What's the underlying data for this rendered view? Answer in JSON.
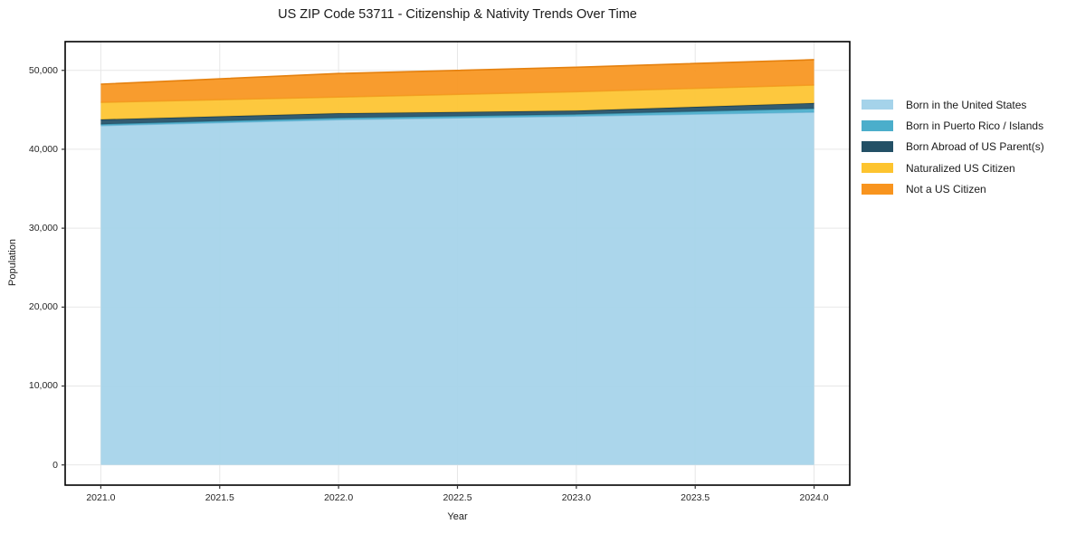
{
  "chart_data": {
    "type": "area",
    "stacked": true,
    "title": "US ZIP Code 53711 - Citizenship & Nativity Trends Over Time",
    "xlabel": "Year",
    "ylabel": "Population",
    "x": [
      2021,
      2022,
      2023,
      2024
    ],
    "series": [
      {
        "name": "Born in the United States",
        "color": "#A5D3EA",
        "edge_color": "#7FBBDA",
        "values": [
          43000,
          43750,
          44200,
          44700
        ]
      },
      {
        "name": "Born in Puerto Rico / Islands",
        "color": "#4BAECB",
        "edge_color": "#3E93AD",
        "values": [
          180,
          230,
          230,
          460
        ]
      },
      {
        "name": "Born Abroad of US Parent(s)",
        "color": "#235066",
        "edge_color": "#1A3E50",
        "values": [
          600,
          580,
          460,
          690
        ]
      },
      {
        "name": "Naturalized US Citizen",
        "color": "#FDC42F",
        "edge_color": "#F0A424",
        "values": [
          2170,
          2060,
          2410,
          2290
        ]
      },
      {
        "name": "Not a US Citizen",
        "color": "#F8941E",
        "edge_color": "#E5810F",
        "values": [
          2300,
          2980,
          3090,
          3210
        ]
      }
    ],
    "stack_totals": [
      48250,
      49600,
      50390,
      51350
    ],
    "xticks": {
      "values": [
        2021.0,
        2021.5,
        2022.0,
        2022.5,
        2023.0,
        2023.5,
        2024.0
      ],
      "labels": [
        "2021.0",
        "2021.5",
        "2022.0",
        "2022.5",
        "2023.0",
        "2023.5",
        "2024.0"
      ]
    },
    "yticks": {
      "values": [
        0,
        10000,
        20000,
        30000,
        40000,
        50000
      ],
      "labels": [
        "0",
        "10,000",
        "20,000",
        "30,000",
        "40,000",
        "50,000"
      ]
    },
    "xlim": [
      2020.85,
      2024.15
    ],
    "ylim": [
      -2560,
      53640
    ],
    "grid": true,
    "grid_color": "#e7e7e7",
    "legend_position": "right",
    "spine_color": "#000000",
    "tick_color": "#333333",
    "fill_opacity": 0.93
  }
}
